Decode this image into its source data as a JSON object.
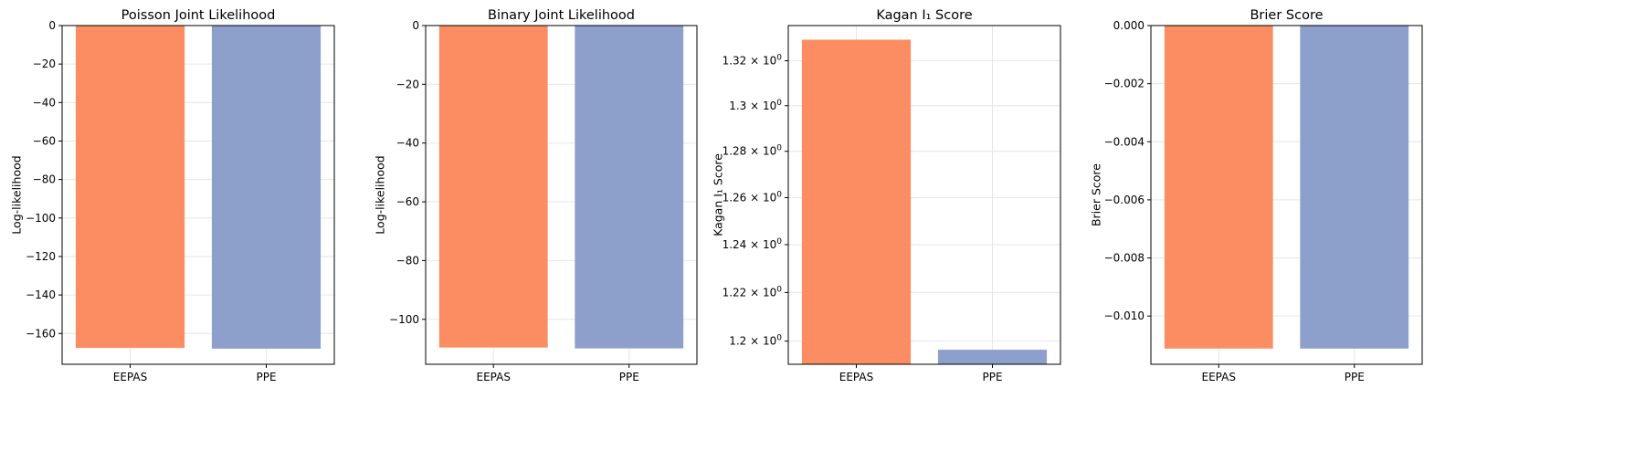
{
  "chart_data": [
    {
      "type": "bar",
      "title": "Poisson Joint Likelihood",
      "xlabel": "",
      "ylabel": "Log-likelihood",
      "categories": [
        "EEPAS",
        "PPE"
      ],
      "values": [
        -167.5,
        -167.9
      ],
      "ylim": [
        -176,
        0
      ],
      "yscale": "linear",
      "yticks": [
        0,
        -20,
        -40,
        -60,
        -80,
        -100,
        -120,
        -140,
        -160
      ],
      "ytick_labels": [
        "0",
        "−20",
        "−40",
        "−60",
        "−80",
        "−100",
        "−120",
        "−140",
        "−160"
      ],
      "grid": true,
      "colors": [
        "#fc8d62",
        "#8da0cb"
      ]
    },
    {
      "type": "bar",
      "title": "Binary Joint Likelihood",
      "xlabel": "",
      "ylabel": "Log-likelihood",
      "categories": [
        "EEPAS",
        "PPE"
      ],
      "values": [
        -109.6,
        -109.9
      ],
      "ylim": [
        -115.3,
        0
      ],
      "yscale": "linear",
      "yticks": [
        0,
        -20,
        -40,
        -60,
        -80,
        -100
      ],
      "ytick_labels": [
        "0",
        "−20",
        "−40",
        "−60",
        "−80",
        "−100"
      ],
      "grid": true,
      "colors": [
        "#fc8d62",
        "#8da0cb"
      ]
    },
    {
      "type": "bar",
      "title": "Kagan I₁ Score",
      "xlabel": "",
      "ylabel": "Kagan I₁ Score",
      "categories": [
        "EEPAS",
        "PPE"
      ],
      "values": [
        1.3295,
        1.1965
      ],
      "ylim": [
        1.1906,
        1.3359
      ],
      "yscale": "log",
      "yticks": [
        1.2,
        1.22,
        1.24,
        1.26,
        1.28,
        1.3,
        1.32
      ],
      "ytick_labels": [
        {
          "mant": "1.2 × 10",
          "exp": "0"
        },
        {
          "mant": "1.22 × 10",
          "exp": "0"
        },
        {
          "mant": "1.24 × 10",
          "exp": "0"
        },
        {
          "mant": "1.26 × 10",
          "exp": "0"
        },
        {
          "mant": "1.28 × 10",
          "exp": "0"
        },
        {
          "mant": "1.3 × 10",
          "exp": "0"
        },
        {
          "mant": "1.32 × 10",
          "exp": "0"
        }
      ],
      "grid": true,
      "colors": [
        "#fc8d62",
        "#8da0cb"
      ]
    },
    {
      "type": "bar",
      "title": "Brier Score",
      "xlabel": "",
      "ylabel": "Brier Score",
      "categories": [
        "EEPAS",
        "PPE"
      ],
      "values": [
        -0.01112,
        -0.01112
      ],
      "ylim": [
        -0.01166,
        0
      ],
      "yscale": "linear",
      "yticks": [
        0,
        -0.002,
        -0.004,
        -0.006,
        -0.008,
        -0.01
      ],
      "ytick_labels": [
        "0.000",
        "−0.002",
        "−0.004",
        "−0.006",
        "−0.008",
        "−0.010"
      ],
      "grid": true,
      "colors": [
        "#fc8d62",
        "#8da0cb"
      ]
    }
  ]
}
